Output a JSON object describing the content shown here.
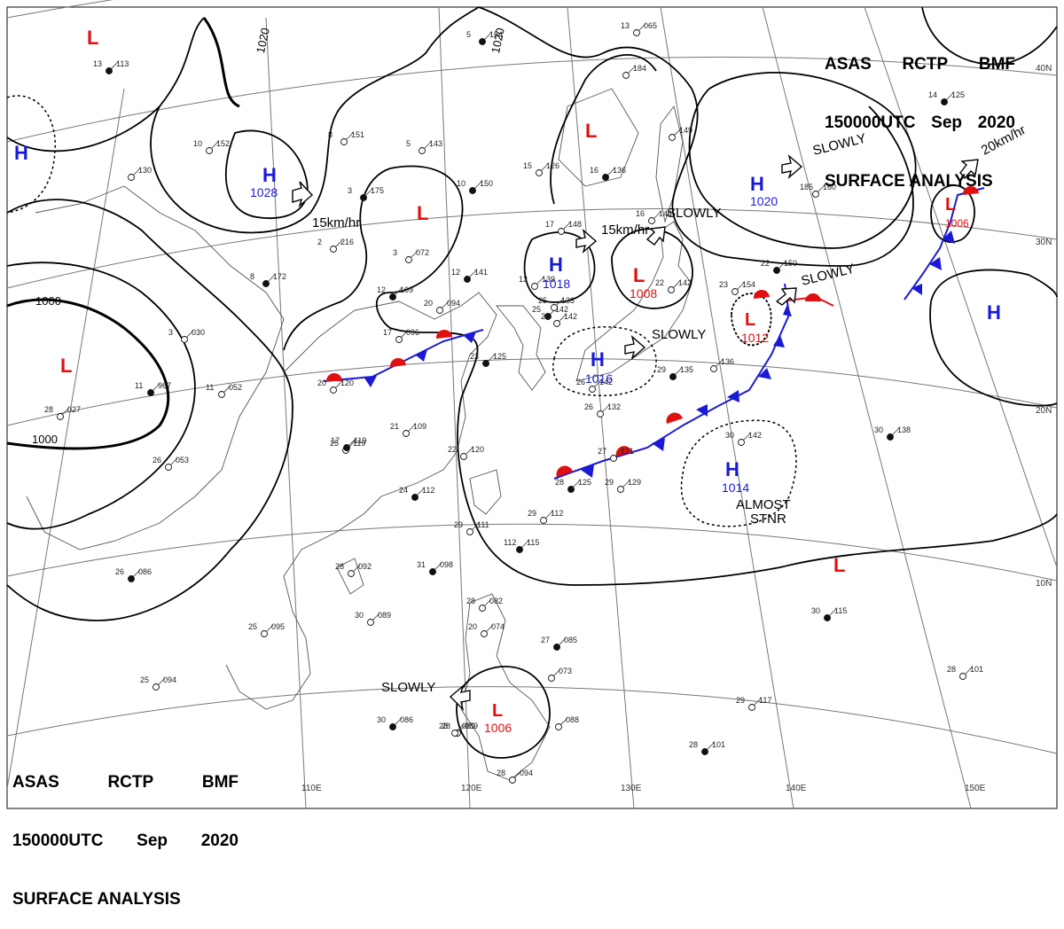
{
  "header_top_right": {
    "line1": [
      "ASAS",
      "RCTP",
      "BMF"
    ],
    "line2": [
      "150000UTC",
      "Sep",
      "2020"
    ],
    "line3": "SURFACE ANALYSIS"
  },
  "header_bottom_left": {
    "line1": [
      "ASAS",
      "RCTP",
      "BMF"
    ],
    "line2": [
      "150000UTC",
      "Sep",
      "2020"
    ],
    "line3": "SURFACE ANALYSIS"
  },
  "longitudes": [
    "110E",
    "120E",
    "130E",
    "140E",
    "150E"
  ],
  "latitudes": [
    "40N",
    "30N",
    "20N",
    "10N"
  ],
  "isobar_labels": [
    "1020",
    "1020",
    "1000",
    "1000"
  ],
  "highs": [
    {
      "letter": "H",
      "value": "1028"
    },
    {
      "letter": "H",
      "value": "1018"
    },
    {
      "letter": "H",
      "value": "1016"
    },
    {
      "letter": "H",
      "value": "1020"
    },
    {
      "letter": "H",
      "value": "1014"
    },
    {
      "letter": "H",
      "value": ""
    },
    {
      "letter": "H",
      "value": ""
    }
  ],
  "lows": [
    {
      "letter": "L",
      "value": "1008"
    },
    {
      "letter": "L",
      "value": "1012"
    },
    {
      "letter": "L",
      "value": "1006"
    },
    {
      "letter": "L",
      "value": "1006"
    },
    {
      "letter": "L",
      "value": ""
    },
    {
      "letter": "L",
      "value": ""
    },
    {
      "letter": "L",
      "value": ""
    },
    {
      "letter": "L",
      "value": ""
    },
    {
      "letter": "L",
      "value": ""
    }
  ],
  "motions": [
    "15km/hr",
    "15km/hr",
    "SLOWLY",
    "SLOWLY",
    "SLOWLY",
    "SLOWLY",
    "20km/hr",
    "SLOWLY",
    "ALMOST",
    "STNR"
  ],
  "stations": [
    {
      "t": "13",
      "p": "113"
    },
    {
      "t": "10",
      "p": "152"
    },
    {
      "t": "",
      "p": "130"
    },
    {
      "t": "8",
      "p": "172"
    },
    {
      "t": "3",
      "p": "030"
    },
    {
      "t": "11",
      "p": "052"
    },
    {
      "t": "11",
      "p": "967"
    },
    {
      "t": "28",
      "p": "027"
    },
    {
      "t": "26",
      "p": "053"
    },
    {
      "t": "26",
      "p": "086"
    },
    {
      "t": "25",
      "p": "095"
    },
    {
      "t": "25",
      "p": "094"
    },
    {
      "t": "30",
      "p": "086"
    },
    {
      "t": "28",
      "p": "089"
    },
    {
      "t": "30",
      "p": "089"
    },
    {
      "t": "31",
      "p": "098"
    },
    {
      "t": "28",
      "p": "092"
    },
    {
      "t": "25",
      "p": "119"
    },
    {
      "t": "24",
      "p": "112"
    },
    {
      "t": "21",
      "p": "109"
    },
    {
      "t": "22",
      "p": "120"
    },
    {
      "t": "17",
      "p": "119"
    },
    {
      "t": "20",
      "p": "120"
    },
    {
      "t": "17",
      "p": "096"
    },
    {
      "t": "12",
      "p": "109"
    },
    {
      "t": "3",
      "p": "072"
    },
    {
      "t": "20",
      "p": "094"
    },
    {
      "t": "12",
      "p": "141"
    },
    {
      "t": "13",
      "p": "139"
    },
    {
      "t": "2",
      "p": "216"
    },
    {
      "t": "3",
      "p": "175"
    },
    {
      "t": "5",
      "p": "143"
    },
    {
      "t": "8",
      "p": "151"
    },
    {
      "t": "10",
      "p": "150"
    },
    {
      "t": "15",
      "p": "126"
    },
    {
      "t": "17",
      "p": "148"
    },
    {
      "t": "16",
      "p": "136"
    },
    {
      "t": "16",
      "p": "144"
    },
    {
      "t": "13",
      "p": "065"
    },
    {
      "t": "5",
      "p": "154"
    },
    {
      "t": "",
      "p": "184"
    },
    {
      "t": "",
      "p": "149"
    },
    {
      "t": "14",
      "p": "125"
    },
    {
      "t": "185",
      "p": "160"
    },
    {
      "t": "23",
      "p": "154"
    },
    {
      "t": "22",
      "p": "150"
    },
    {
      "t": "22",
      "p": "142"
    },
    {
      "t": "26",
      "p": "142"
    },
    {
      "t": "25",
      "p": "142"
    },
    {
      "t": "25",
      "p": "133"
    },
    {
      "t": "26",
      "p": "132"
    },
    {
      "t": "29",
      "p": "135"
    },
    {
      "t": "",
      "p": "136"
    },
    {
      "t": "27",
      "p": "121"
    },
    {
      "t": "28",
      "p": "125"
    },
    {
      "t": "29",
      "p": "129"
    },
    {
      "t": "29",
      "p": "112"
    },
    {
      "t": "112",
      "p": "115"
    },
    {
      "t": "29",
      "p": "111"
    },
    {
      "t": "30",
      "p": "142"
    },
    {
      "t": "30",
      "p": "138"
    },
    {
      "t": "28",
      "p": "082"
    },
    {
      "t": "20",
      "p": "074"
    },
    {
      "t": "27",
      "p": "085"
    },
    {
      "t": "",
      "p": "073"
    },
    {
      "t": "",
      "p": "088"
    },
    {
      "t": "30",
      "p": "115"
    },
    {
      "t": "28",
      "p": "101"
    },
    {
      "t": "29",
      "p": "117"
    },
    {
      "t": "28",
      "p": "101"
    },
    {
      "t": "28",
      "p": "094"
    },
    {
      "t": "28",
      "p": "089"
    },
    {
      "t": "23",
      "p": "125"
    },
    {
      "t": "20",
      "p": "142"
    }
  ],
  "colors": {
    "high": "#1a1ad6",
    "low": "#e01010",
    "cold_front": "#1a1ad6",
    "warm_front": "#e01010",
    "line": "#000000",
    "coast": "#555555",
    "grid": "#777777"
  }
}
